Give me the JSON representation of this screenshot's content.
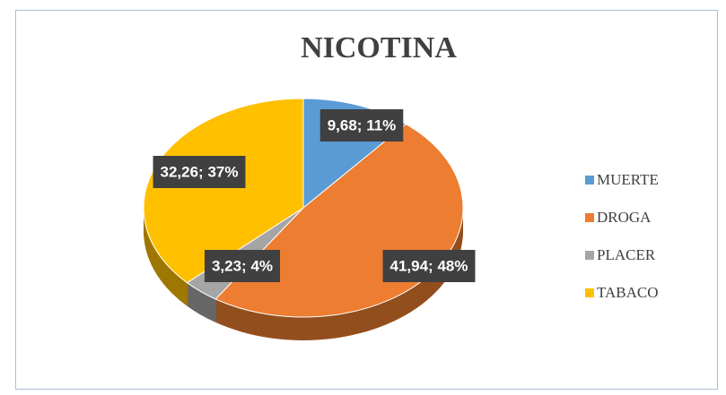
{
  "chart_data": {
    "type": "pie",
    "title": "NICOTINA",
    "categories": [
      "MUERTE",
      "DROGA",
      "PLACER",
      "TABACO"
    ],
    "values": [
      9.68,
      41.94,
      3.23,
      32.26
    ],
    "value_labels": [
      "9,68; 11%",
      "41,94; 48%",
      "3,23; 4%",
      "32,26; 37%"
    ],
    "colors": [
      "#5b9bd5",
      "#ed7d31",
      "#a5a5a5",
      "#ffc000"
    ],
    "legend": "right"
  }
}
